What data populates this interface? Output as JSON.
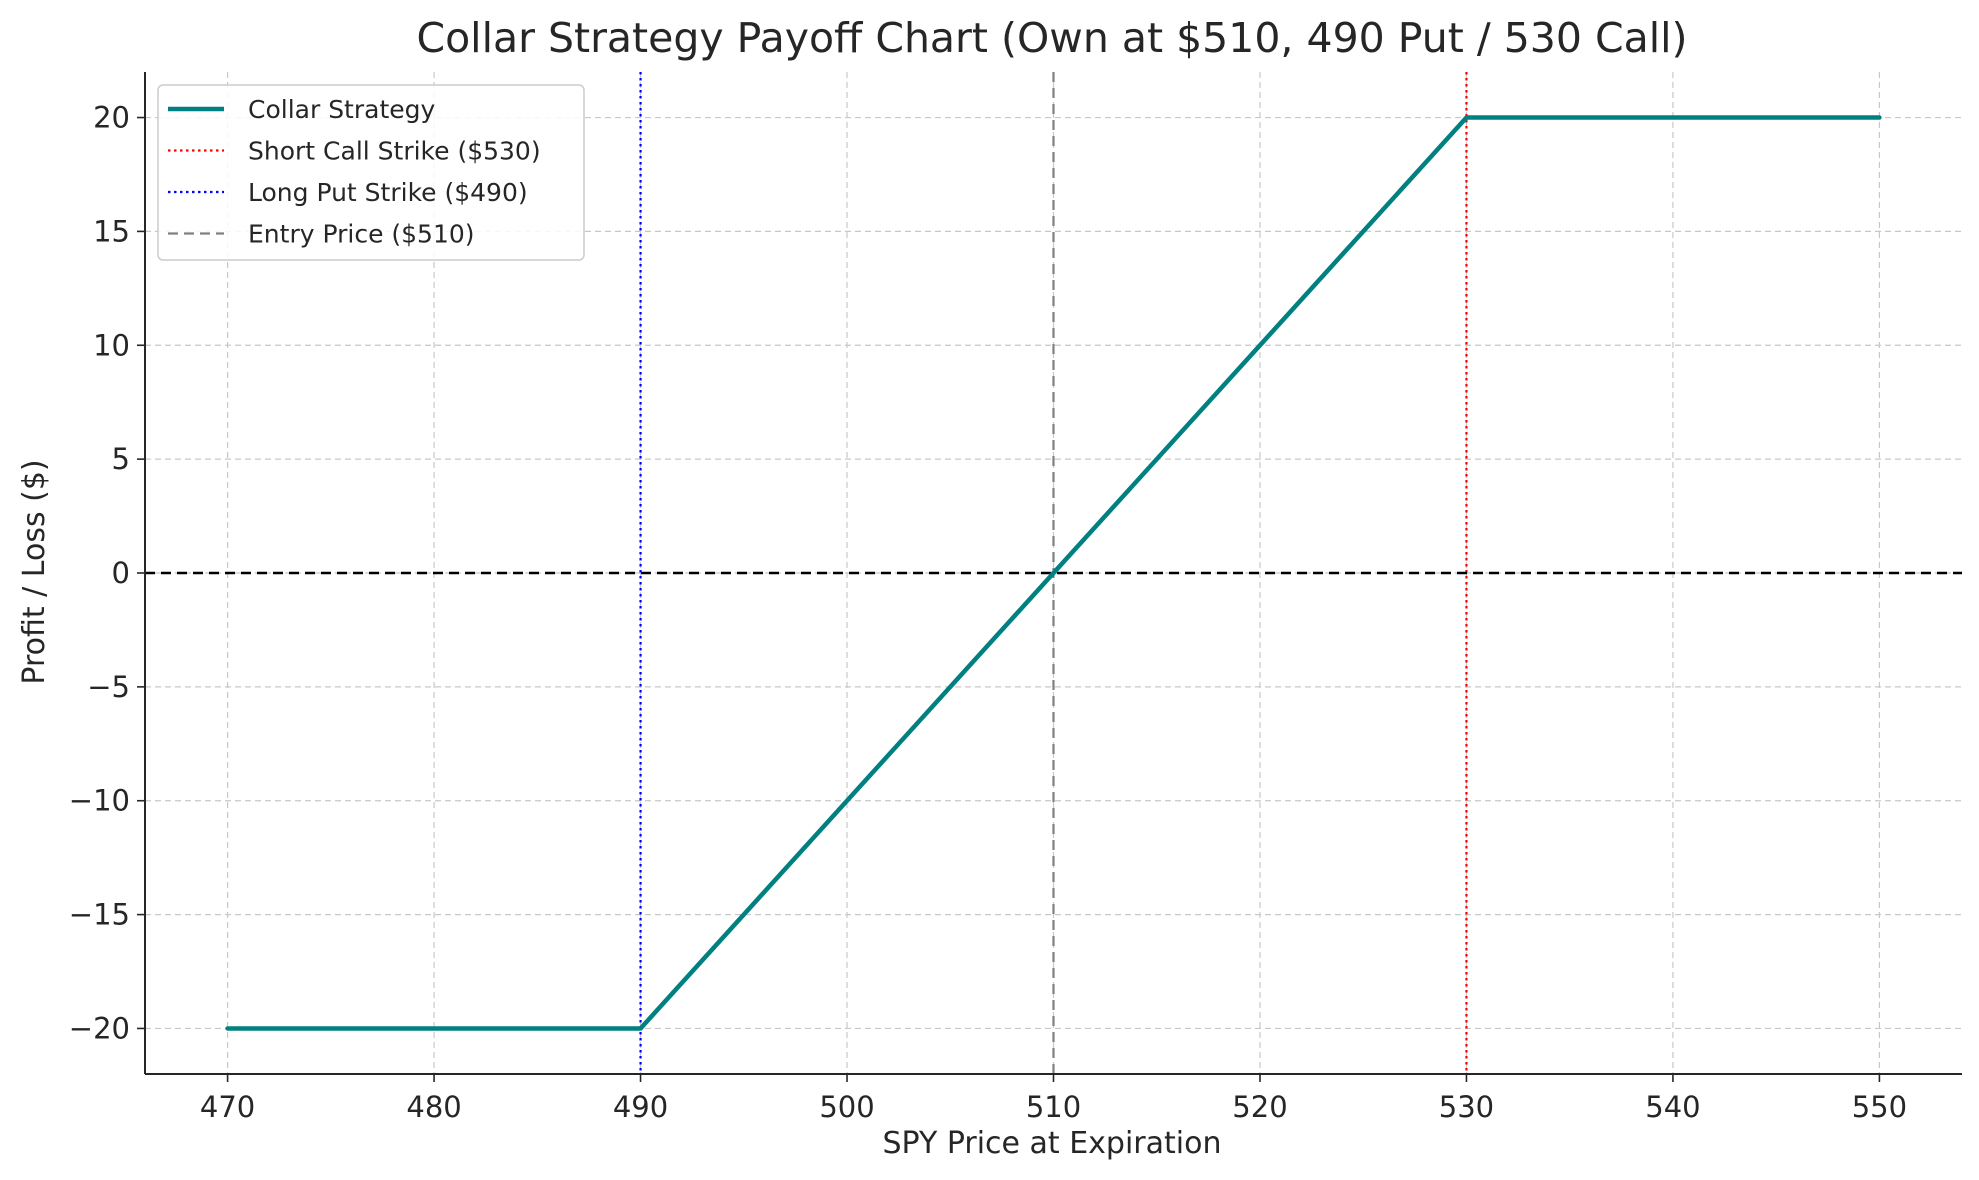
{
  "chart_data": {
    "type": "line",
    "title": "Collar Strategy Payoff Chart (Own at $510, 490 Put / 530 Call)",
    "xlabel": "SPY Price at Expiration",
    "ylabel": "Profit / Loss ($)",
    "xlim": [
      466,
      554
    ],
    "ylim": [
      -22,
      22
    ],
    "xticks": [
      470,
      480,
      490,
      500,
      510,
      520,
      530,
      540,
      550
    ],
    "yticks": [
      -20,
      -15,
      -10,
      -5,
      0,
      5,
      10,
      15,
      20
    ],
    "grid": true,
    "legend_position": "upper-left",
    "series": [
      {
        "name": "Collar Strategy",
        "color": "#008080",
        "style": "solid",
        "x": [
          470,
          490,
          530,
          550
        ],
        "y": [
          -20,
          -20,
          20,
          20
        ]
      }
    ],
    "reference_lines": [
      {
        "name": "Short Call Strike ($530)",
        "orientation": "vertical",
        "value": 530,
        "color": "#ff0000",
        "style": "dotted",
        "in_legend": true
      },
      {
        "name": "Long Put Strike ($490)",
        "orientation": "vertical",
        "value": 490,
        "color": "#0000ff",
        "style": "dotted",
        "in_legend": true
      },
      {
        "name": "Entry Price ($510)",
        "orientation": "vertical",
        "value": 510,
        "color": "#808080",
        "style": "dashed",
        "in_legend": true
      },
      {
        "name": "",
        "orientation": "horizontal",
        "value": 0,
        "color": "#000000",
        "style": "dashed",
        "in_legend": false
      }
    ]
  }
}
